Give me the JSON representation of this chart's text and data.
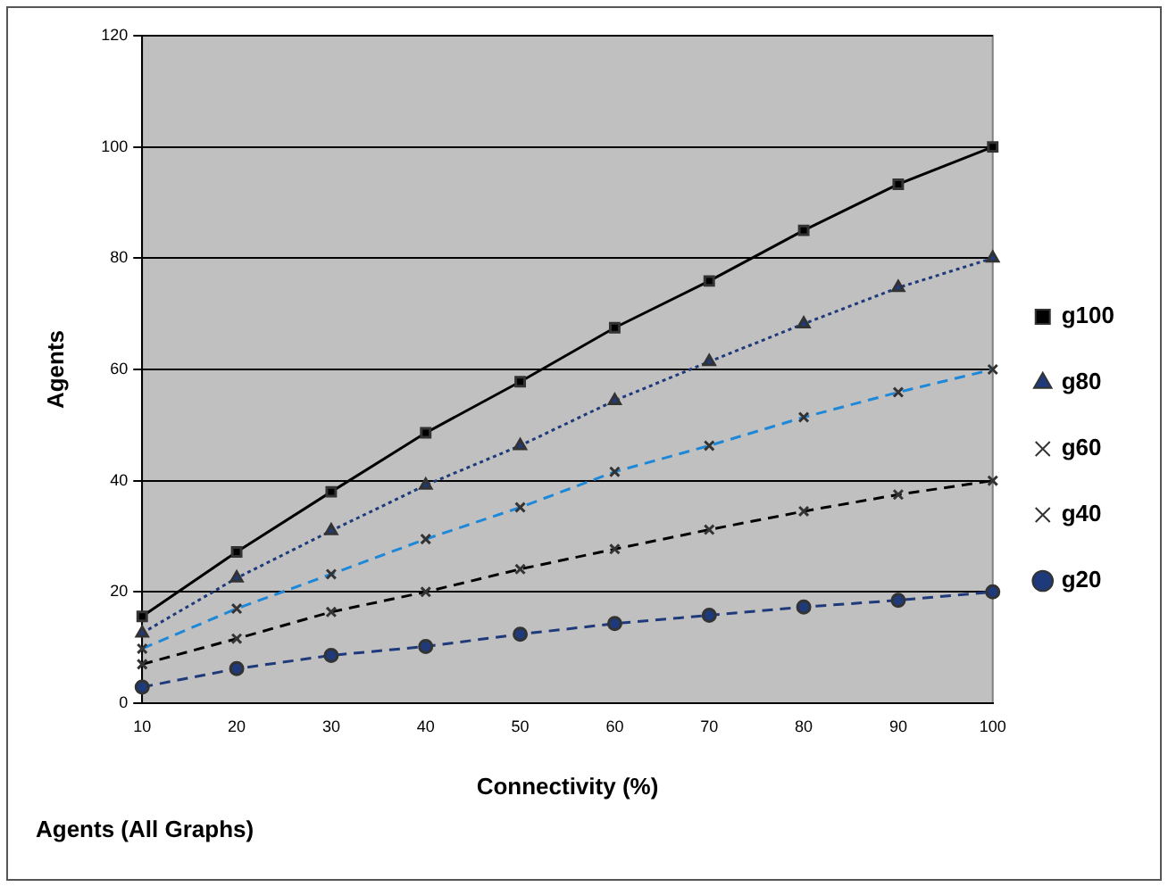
{
  "chart_data": {
    "type": "line",
    "title": "Agents (All Graphs)",
    "xlabel": "Connectivity (%)",
    "ylabel": "Agents",
    "categories": [
      "10",
      "20",
      "30",
      "40",
      "50",
      "60",
      "70",
      "80",
      "90",
      "100"
    ],
    "series": [
      {
        "name": "g100",
        "color": "#000000",
        "marker": "square",
        "line_style": "solid",
        "values": [
          15.6,
          27.2,
          38,
          48.6,
          57.8,
          67.5,
          75.9,
          85,
          93.3,
          100
        ]
      },
      {
        "name": "g80",
        "color": "#1f3a7a",
        "marker": "triangle",
        "line_style": "dotted",
        "values": [
          12.6,
          22.5,
          31,
          39.2,
          46.3,
          54.4,
          61.4,
          68.2,
          74.7,
          80
        ]
      },
      {
        "name": "g60",
        "color": "#1e88d8",
        "marker": "cross",
        "line_style": "dashed",
        "values": [
          9.8,
          17,
          23.2,
          29.5,
          35.2,
          41.6,
          46.3,
          51.4,
          55.9,
          60
        ]
      },
      {
        "name": "g40",
        "color": "#000000",
        "marker": "cross",
        "line_style": "dashed",
        "values": [
          7,
          11.6,
          16.4,
          20,
          24.1,
          27.7,
          31.2,
          34.5,
          37.5,
          40
        ]
      },
      {
        "name": "g20",
        "color": "#1f3a7a",
        "marker": "circle",
        "line_style": "dashed",
        "values": [
          2.9,
          6.2,
          8.6,
          10.2,
          12.4,
          14.3,
          15.8,
          17.3,
          18.5,
          20
        ]
      }
    ],
    "ylim": [
      0,
      120
    ],
    "yticks": [
      0,
      20,
      40,
      60,
      80,
      100,
      120
    ],
    "grid": "y",
    "legend": "right"
  }
}
